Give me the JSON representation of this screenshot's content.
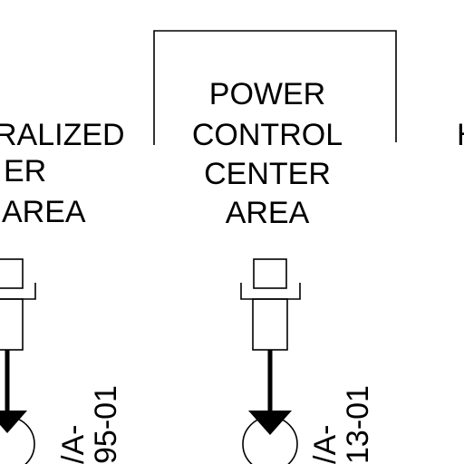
{
  "labels": {
    "left": {
      "line1": "RALIZED",
      "line2": "ER",
      "line3": "AREA"
    },
    "center": {
      "line1": "POWER",
      "line2": "CONTROL",
      "line3": "CENTER",
      "line4": "AREA"
    },
    "right": {
      "line1": "H"
    }
  },
  "tags": {
    "left": {
      "line1": "/A-",
      "line2": "95-01"
    },
    "center": {
      "line1": "/A-",
      "line2": "13-01"
    }
  }
}
